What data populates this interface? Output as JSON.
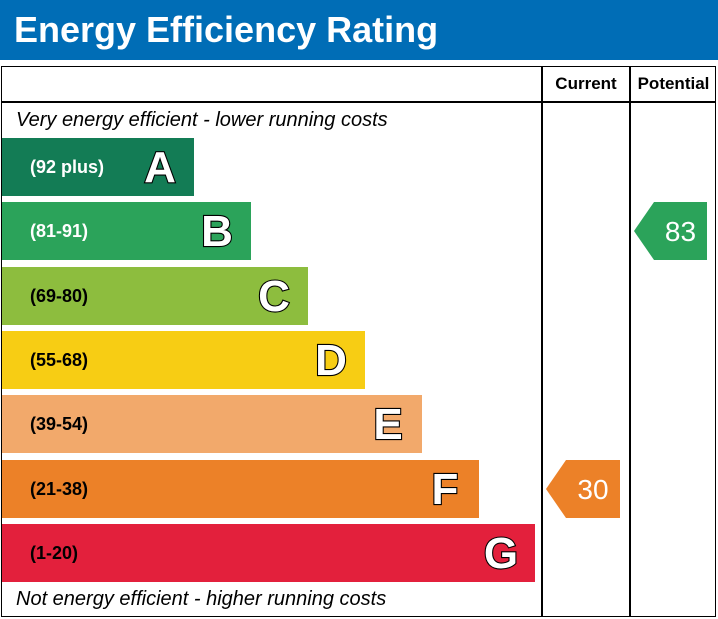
{
  "title": "Energy Efficiency Rating",
  "columns": {
    "current": "Current",
    "potential": "Potential"
  },
  "notes": {
    "top": "Very energy efficient - lower running costs",
    "bottom": "Not energy efficient - higher running costs"
  },
  "chart_data": {
    "type": "bar",
    "categories": [
      "A",
      "B",
      "C",
      "D",
      "E",
      "F",
      "G"
    ],
    "bands": [
      {
        "letter": "A",
        "range": "(92 plus)",
        "color": "#137c55",
        "text_color": "#ffffff"
      },
      {
        "letter": "B",
        "range": "(81-91)",
        "color": "#2ba35a",
        "text_color": "#ffffff"
      },
      {
        "letter": "C",
        "range": "(69-80)",
        "color": "#8dbd3e",
        "text_color": "#000000"
      },
      {
        "letter": "D",
        "range": "(55-68)",
        "color": "#f7cd14",
        "text_color": "#000000"
      },
      {
        "letter": "E",
        "range": "(39-54)",
        "color": "#f2a96b",
        "text_color": "#000000"
      },
      {
        "letter": "F",
        "range": "(21-38)",
        "color": "#ec8128",
        "text_color": "#000000"
      },
      {
        "letter": "G",
        "range": "(1-20)",
        "color": "#e3203c",
        "text_color": "#000000"
      }
    ],
    "current": {
      "value": 30,
      "band": "F",
      "color": "#ec8128"
    },
    "potential": {
      "value": 83,
      "band": "B",
      "color": "#2ba35a"
    }
  }
}
